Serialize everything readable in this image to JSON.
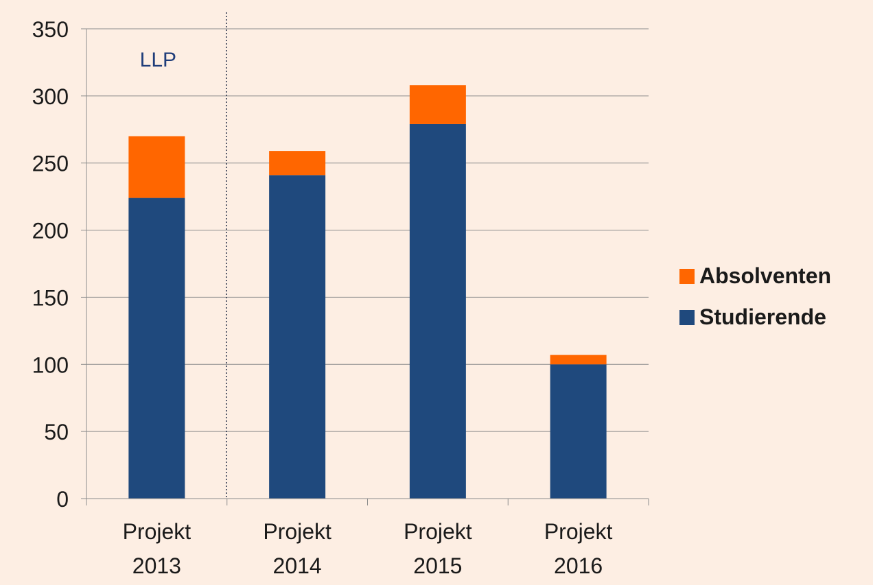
{
  "chart_data": {
    "type": "bar",
    "stacked": true,
    "categories": [
      [
        "Projekt",
        "2013"
      ],
      [
        "Projekt",
        "2014"
      ],
      [
        "Projekt",
        "2015"
      ],
      [
        "Projekt",
        "2016"
      ]
    ],
    "series": [
      {
        "name": "Studierende",
        "values": [
          224,
          241,
          279,
          100
        ],
        "color": "#1f497d"
      },
      {
        "name": "Absolventen",
        "values": [
          46,
          18,
          29,
          7
        ],
        "color": "#ff6600"
      }
    ],
    "ylim": [
      0,
      350
    ],
    "yticks": [
      0,
      50,
      100,
      150,
      200,
      250,
      300,
      350
    ],
    "grid": true,
    "legend_position": "right",
    "legend_order": [
      "Absolventen",
      "Studierende"
    ],
    "annotation": {
      "text": "LLP",
      "color": "#1f3d7a"
    },
    "separator_after_category": 0
  }
}
